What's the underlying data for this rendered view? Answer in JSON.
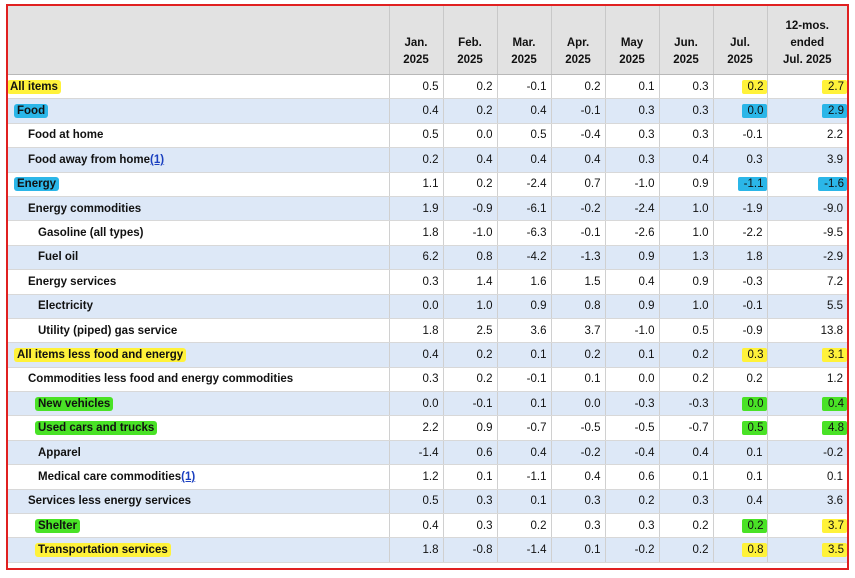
{
  "table": {
    "headers": [
      {
        "lines": [
          "",
          ""
        ]
      },
      {
        "lines": [
          "Jan.",
          "2025"
        ]
      },
      {
        "lines": [
          "Feb.",
          "2025"
        ]
      },
      {
        "lines": [
          "Mar.",
          "2025"
        ]
      },
      {
        "lines": [
          "Apr.",
          "2025"
        ]
      },
      {
        "lines": [
          "May",
          "2025"
        ]
      },
      {
        "lines": [
          "Jun.",
          "2025"
        ]
      },
      {
        "lines": [
          "Jul.",
          "2025"
        ]
      },
      {
        "lines": [
          "12-mos.",
          "ended",
          "Jul. 2025"
        ]
      }
    ],
    "rows": [
      {
        "label": "All items",
        "footnote": "",
        "indent": 0,
        "label_highlight": "yellow",
        "values": [
          "0.5",
          "0.2",
          "-0.1",
          "0.2",
          "0.1",
          "0.3",
          "0.2",
          "2.7"
        ],
        "jul_highlight": "yellow",
        "yr_highlight": "yellow"
      },
      {
        "label": "Food",
        "footnote": "",
        "indent": 1,
        "label_highlight": "blue",
        "values": [
          "0.4",
          "0.2",
          "0.4",
          "-0.1",
          "0.3",
          "0.3",
          "0.0",
          "2.9"
        ],
        "jul_highlight": "blue",
        "yr_highlight": "blue"
      },
      {
        "label": "Food at home",
        "footnote": "",
        "indent": 2,
        "label_highlight": "",
        "values": [
          "0.5",
          "0.0",
          "0.5",
          "-0.4",
          "0.3",
          "0.3",
          "-0.1",
          "2.2"
        ],
        "jul_highlight": "",
        "yr_highlight": ""
      },
      {
        "label": "Food away from home",
        "footnote": "(1)",
        "indent": 2,
        "label_highlight": "",
        "values": [
          "0.2",
          "0.4",
          "0.4",
          "0.4",
          "0.3",
          "0.4",
          "0.3",
          "3.9"
        ],
        "jul_highlight": "",
        "yr_highlight": ""
      },
      {
        "label": "Energy",
        "footnote": "",
        "indent": 1,
        "label_highlight": "blue",
        "values": [
          "1.1",
          "0.2",
          "-2.4",
          "0.7",
          "-1.0",
          "0.9",
          "-1.1",
          "-1.6"
        ],
        "jul_highlight": "blue",
        "yr_highlight": "blue"
      },
      {
        "label": "Energy commodities",
        "footnote": "",
        "indent": 2,
        "label_highlight": "",
        "values": [
          "1.9",
          "-0.9",
          "-6.1",
          "-0.2",
          "-2.4",
          "1.0",
          "-1.9",
          "-9.0"
        ],
        "jul_highlight": "",
        "yr_highlight": ""
      },
      {
        "label": "Gasoline (all types)",
        "footnote": "",
        "indent": 3,
        "label_highlight": "",
        "values": [
          "1.8",
          "-1.0",
          "-6.3",
          "-0.1",
          "-2.6",
          "1.0",
          "-2.2",
          "-9.5"
        ],
        "jul_highlight": "",
        "yr_highlight": ""
      },
      {
        "label": "Fuel oil",
        "footnote": "",
        "indent": 3,
        "label_highlight": "",
        "values": [
          "6.2",
          "0.8",
          "-4.2",
          "-1.3",
          "0.9",
          "1.3",
          "1.8",
          "-2.9"
        ],
        "jul_highlight": "",
        "yr_highlight": ""
      },
      {
        "label": "Energy services",
        "footnote": "",
        "indent": 2,
        "label_highlight": "",
        "values": [
          "0.3",
          "1.4",
          "1.6",
          "1.5",
          "0.4",
          "0.9",
          "-0.3",
          "7.2"
        ],
        "jul_highlight": "",
        "yr_highlight": ""
      },
      {
        "label": "Electricity",
        "footnote": "",
        "indent": 3,
        "label_highlight": "",
        "values": [
          "0.0",
          "1.0",
          "0.9",
          "0.8",
          "0.9",
          "1.0",
          "-0.1",
          "5.5"
        ],
        "jul_highlight": "",
        "yr_highlight": ""
      },
      {
        "label": "Utility (piped) gas service",
        "footnote": "",
        "indent": 3,
        "label_highlight": "",
        "values": [
          "1.8",
          "2.5",
          "3.6",
          "3.7",
          "-1.0",
          "0.5",
          "-0.9",
          "13.8"
        ],
        "jul_highlight": "",
        "yr_highlight": ""
      },
      {
        "label": "All items less food and energy",
        "footnote": "",
        "indent": 1,
        "label_highlight": "yellow",
        "values": [
          "0.4",
          "0.2",
          "0.1",
          "0.2",
          "0.1",
          "0.2",
          "0.3",
          "3.1"
        ],
        "jul_highlight": "yellow",
        "yr_highlight": "yellow"
      },
      {
        "label": "Commodities less food and energy commodities",
        "footnote": "",
        "indent": 2,
        "label_highlight": "",
        "values": [
          "0.3",
          "0.2",
          "-0.1",
          "0.1",
          "0.0",
          "0.2",
          "0.2",
          "1.2"
        ],
        "jul_highlight": "",
        "yr_highlight": ""
      },
      {
        "label": "New vehicles",
        "footnote": "",
        "indent": 3,
        "label_highlight": "green",
        "values": [
          "0.0",
          "-0.1",
          "0.1",
          "0.0",
          "-0.3",
          "-0.3",
          "0.0",
          "0.4"
        ],
        "jul_highlight": "green",
        "yr_highlight": "green"
      },
      {
        "label": "Used cars and trucks",
        "footnote": "",
        "indent": 3,
        "label_highlight": "green",
        "values": [
          "2.2",
          "0.9",
          "-0.7",
          "-0.5",
          "-0.5",
          "-0.7",
          "0.5",
          "4.8"
        ],
        "jul_highlight": "green",
        "yr_highlight": "green"
      },
      {
        "label": "Apparel",
        "footnote": "",
        "indent": 3,
        "label_highlight": "",
        "values": [
          "-1.4",
          "0.6",
          "0.4",
          "-0.2",
          "-0.4",
          "0.4",
          "0.1",
          "-0.2"
        ],
        "jul_highlight": "",
        "yr_highlight": ""
      },
      {
        "label": "Medical care commodities",
        "footnote": "(1)",
        "indent": 3,
        "label_highlight": "",
        "values": [
          "1.2",
          "0.1",
          "-1.1",
          "0.4",
          "0.6",
          "0.1",
          "0.1",
          "0.1"
        ],
        "jul_highlight": "",
        "yr_highlight": ""
      },
      {
        "label": "Services less energy services",
        "footnote": "",
        "indent": 2,
        "label_highlight": "",
        "values": [
          "0.5",
          "0.3",
          "0.1",
          "0.3",
          "0.2",
          "0.3",
          "0.4",
          "3.6"
        ],
        "jul_highlight": "",
        "yr_highlight": ""
      },
      {
        "label": "Shelter",
        "footnote": "",
        "indent": 3,
        "label_highlight": "green",
        "values": [
          "0.4",
          "0.3",
          "0.2",
          "0.3",
          "0.3",
          "0.2",
          "0.2",
          "3.7"
        ],
        "jul_highlight": "green",
        "yr_highlight": "yellow"
      },
      {
        "label": "Transportation services",
        "footnote": "",
        "indent": 3,
        "label_highlight": "yellow",
        "values": [
          "1.8",
          "-0.8",
          "-1.4",
          "0.1",
          "-0.2",
          "0.2",
          "0.8",
          "3.5"
        ],
        "jul_highlight": "yellow",
        "yr_highlight": "yellow"
      }
    ]
  },
  "highlight_colors": {
    "yellow": "#fff23a",
    "blue": "#2bb6e8",
    "green": "#49e226"
  }
}
